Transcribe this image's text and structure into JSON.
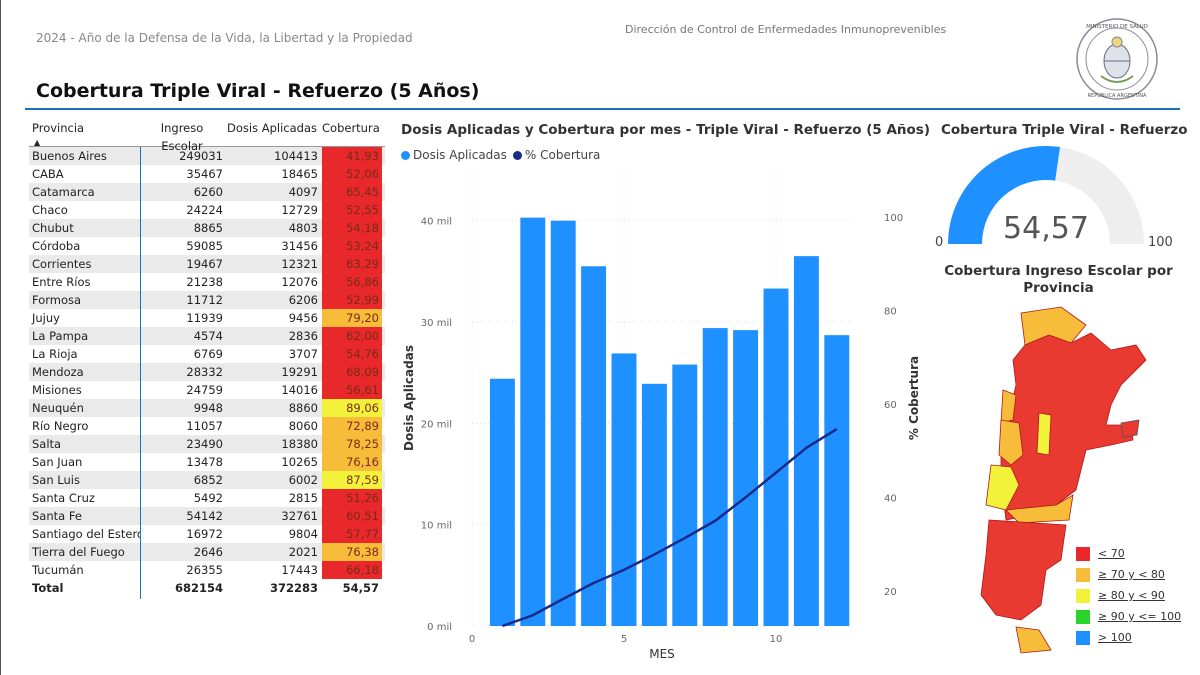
{
  "header": {
    "motto": "2024 - Año de la Defensa de la Vida, la Libertad y la Propiedad",
    "department": "Dirección de Control de Enfermedades Inmunoprevenibles",
    "seal_text_top": "MINISTERIO DE SALUD",
    "seal_text_bottom": "REPÚBLICA ARGENTINA",
    "title": "Cobertura Triple Viral - Refuerzo (5 Años)"
  },
  "table": {
    "columns": [
      "Provincia",
      "Ingreso Escolar",
      "Dosis Aplicadas",
      "Cobertura"
    ],
    "rows": [
      [
        "Buenos Aires",
        "249031",
        "104413",
        "41,93"
      ],
      [
        "CABA",
        "35467",
        "18465",
        "52,06"
      ],
      [
        "Catamarca",
        "6260",
        "4097",
        "65,45"
      ],
      [
        "Chaco",
        "24224",
        "12729",
        "52,55"
      ],
      [
        "Chubut",
        "8865",
        "4803",
        "54,18"
      ],
      [
        "Córdoba",
        "59085",
        "31456",
        "53,24"
      ],
      [
        "Corrientes",
        "19467",
        "12321",
        "63,29"
      ],
      [
        "Entre Ríos",
        "21238",
        "12076",
        "56,86"
      ],
      [
        "Formosa",
        "11712",
        "6206",
        "52,99"
      ],
      [
        "Jujuy",
        "11939",
        "9456",
        "79,20"
      ],
      [
        "La Pampa",
        "4574",
        "2836",
        "62,00"
      ],
      [
        "La Rioja",
        "6769",
        "3707",
        "54,76"
      ],
      [
        "Mendoza",
        "28332",
        "19291",
        "68,09"
      ],
      [
        "Misiones",
        "24759",
        "14016",
        "56,61"
      ],
      [
        "Neuquén",
        "9948",
        "8860",
        "89,06"
      ],
      [
        "Río Negro",
        "11057",
        "8060",
        "72,89"
      ],
      [
        "Salta",
        "23490",
        "18380",
        "78,25"
      ],
      [
        "San Juan",
        "13478",
        "10265",
        "76,16"
      ],
      [
        "San Luis",
        "6852",
        "6002",
        "87,59"
      ],
      [
        "Santa Cruz",
        "5492",
        "2815",
        "51,26"
      ],
      [
        "Santa Fe",
        "54142",
        "32761",
        "60,51"
      ],
      [
        "Santiago del Estero",
        "16972",
        "9804",
        "57,77"
      ],
      [
        "Tierra del Fuego",
        "2646",
        "2021",
        "76,38"
      ],
      [
        "Tucumán",
        "26355",
        "17443",
        "66,18"
      ]
    ],
    "total": [
      "Total",
      "682154",
      "372283",
      "54,57"
    ]
  },
  "chart_data": [
    {
      "type": "bar",
      "title": "Dosis Aplicadas y Cobertura por mes - Triple Viral - Refuerzo (5 Años)",
      "xlabel": "MES",
      "ylabel": "Dosis Aplicadas",
      "y2label": "% Cobertura",
      "x": [
        1,
        2,
        3,
        4,
        5,
        6,
        7,
        8,
        9,
        10,
        11,
        12
      ],
      "xlim": [
        0,
        12.5
      ],
      "ylim": [
        0,
        45000
      ],
      "y2lim": [
        12.5,
        110
      ],
      "xticks": [
        0,
        5,
        10
      ],
      "yticks": [
        0,
        10000,
        20000,
        30000,
        40000
      ],
      "ytick_labels": [
        "0 mil",
        "10 mil",
        "20 mil",
        "30 mil",
        "40 mil"
      ],
      "y2ticks": [
        20,
        40,
        60,
        80,
        100
      ],
      "series": [
        {
          "name": "Dosis Aplicadas",
          "kind": "bar",
          "color": "#1e90ff",
          "values": [
            24400,
            40300,
            40000,
            35500,
            26900,
            23900,
            25800,
            29400,
            29200,
            33300,
            36500,
            28700
          ]
        },
        {
          "name": "% Cobertura",
          "kind": "line",
          "axis": "right",
          "color": "#1a2a8a",
          "values": [
            12.5,
            14.8,
            18.3,
            21.7,
            24.5,
            27.8,
            31.3,
            35.0,
            40.0,
            45.3,
            50.6,
            54.6
          ]
        }
      ],
      "grid": true,
      "legend": "top-left"
    },
    {
      "type": "gauge",
      "title": "Cobertura Triple Viral - Refuerzo",
      "value": 54.57,
      "value_label": "54,57",
      "min": 0,
      "max": 100,
      "min_label": "0",
      "max_label": "100",
      "color": "#1e90ff"
    }
  ],
  "map": {
    "title": "Cobertura Ingreso Escolar por Provincia",
    "legend": [
      {
        "label": "< 70",
        "color": "#e8282a"
      },
      {
        "label": "≥ 70 y < 80",
        "color": "#f7bc3a"
      },
      {
        "label": "≥ 80 y < 90",
        "color": "#f2f23a"
      },
      {
        "label": "≥ 90 y <= 100",
        "color": "#2ad42a"
      },
      {
        "label": "> 100",
        "color": "#1e90ff"
      }
    ]
  }
}
